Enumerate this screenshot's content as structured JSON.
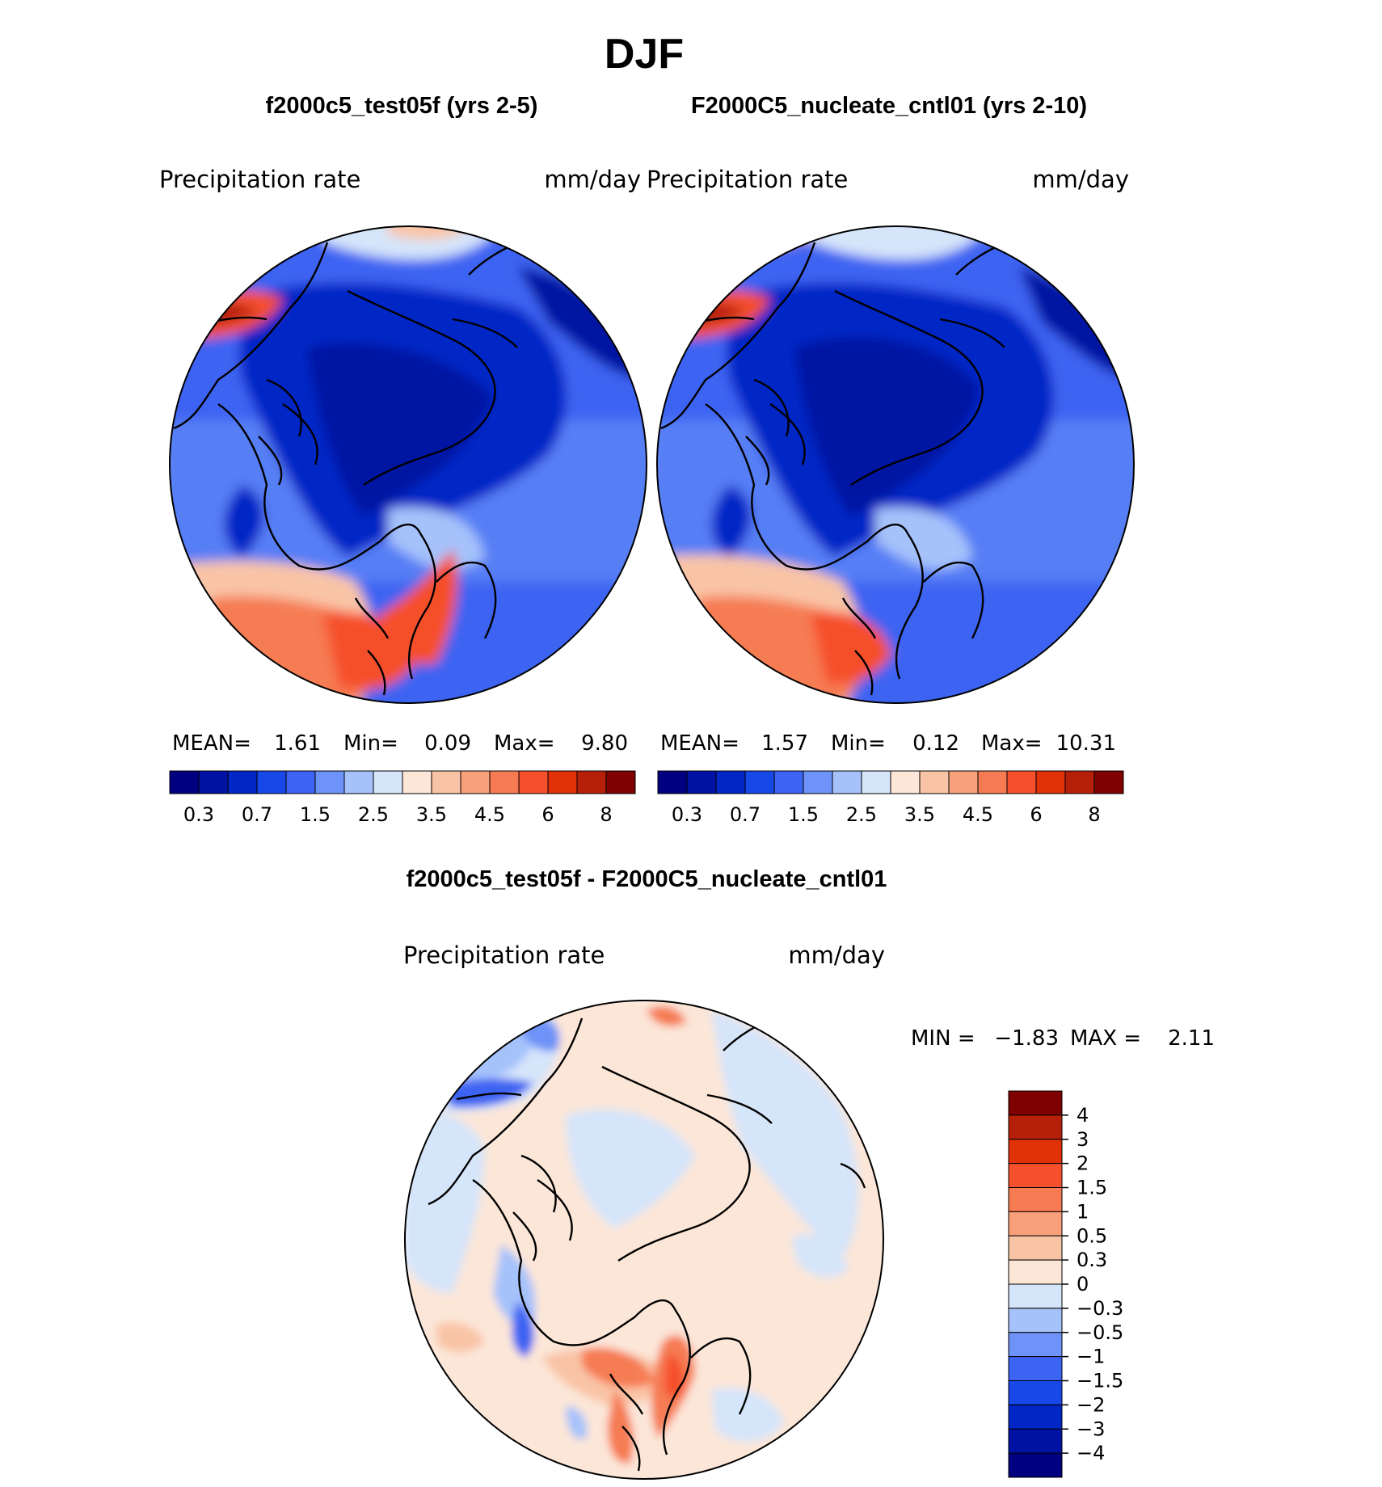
{
  "title": "DJF",
  "chart_data": [
    {
      "type": "heatmap",
      "subtitle": "f2000c5_test05f (yrs 2-5)",
      "field_label": "Precipitation  rate",
      "units": "mm/day",
      "projection": "north polar stereographic",
      "stats": {
        "mean_label": "MEAN=",
        "mean": "1.61",
        "min_label": "Min=",
        "min": "0.09",
        "max_label": "Max=",
        "max": "9.80"
      },
      "colorbar": {
        "tick_labels": [
          "0.3",
          "0.7",
          "1.5",
          "2.5",
          "3.5",
          "4.5",
          "6",
          "8"
        ],
        "colors": [
          "#000080",
          "#0012A3",
          "#0026C6",
          "#1848E8",
          "#3C64F2",
          "#6E93F8",
          "#A6C2FB",
          "#D5E5FA",
          "#FCE6D8",
          "#F9C4A6",
          "#F7A07A",
          "#F67B52",
          "#F5502C",
          "#E03109",
          "#B61F0A",
          "#7F0000"
        ]
      }
    },
    {
      "type": "heatmap",
      "subtitle": "F2000C5_nucleate_cntl01 (yrs 2-10)",
      "field_label": "Precipitation  rate",
      "units": "mm/day",
      "projection": "north polar stereographic",
      "stats": {
        "mean_label": "MEAN=",
        "mean": "1.57",
        "min_label": "Min=",
        "min": "0.12",
        "max_label": "Max=",
        "max": "10.31"
      },
      "colorbar": {
        "tick_labels": [
          "0.3",
          "0.7",
          "1.5",
          "2.5",
          "3.5",
          "4.5",
          "6",
          "8"
        ],
        "colors": [
          "#000080",
          "#0012A3",
          "#0026C6",
          "#1848E8",
          "#3C64F2",
          "#6E93F8",
          "#A6C2FB",
          "#D5E5FA",
          "#FCE6D8",
          "#F9C4A6",
          "#F7A07A",
          "#F67B52",
          "#F5502C",
          "#E03109",
          "#B61F0A",
          "#7F0000"
        ]
      }
    },
    {
      "type": "heatmap",
      "subtitle": "f2000c5_test05f - F2000C5_nucleate_cntl01",
      "field_label": "Precipitation  rate",
      "units": "mm/day",
      "projection": "north polar stereographic",
      "stats": {
        "min_label": "MIN  =",
        "min": "−1.83",
        "max_label": "MAX  =",
        "max": "2.11"
      },
      "colorbar": {
        "orientation": "vertical",
        "tick_labels": [
          "4",
          "3",
          "2",
          "1.5",
          "1",
          "0.5",
          "0.3",
          "0",
          "−0.3",
          "−0.5",
          "−1",
          "−1.5",
          "−2",
          "−3",
          "−4"
        ],
        "colors": [
          "#7F0000",
          "#B61F0A",
          "#E03109",
          "#F5502C",
          "#F67B52",
          "#F9A07A",
          "#F9C4A6",
          "#FCE6D8",
          "#D5E5FA",
          "#A6C2FB",
          "#6E93F8",
          "#3C64F2",
          "#1848E8",
          "#0026C6",
          "#0012A3",
          "#000080"
        ]
      }
    }
  ]
}
